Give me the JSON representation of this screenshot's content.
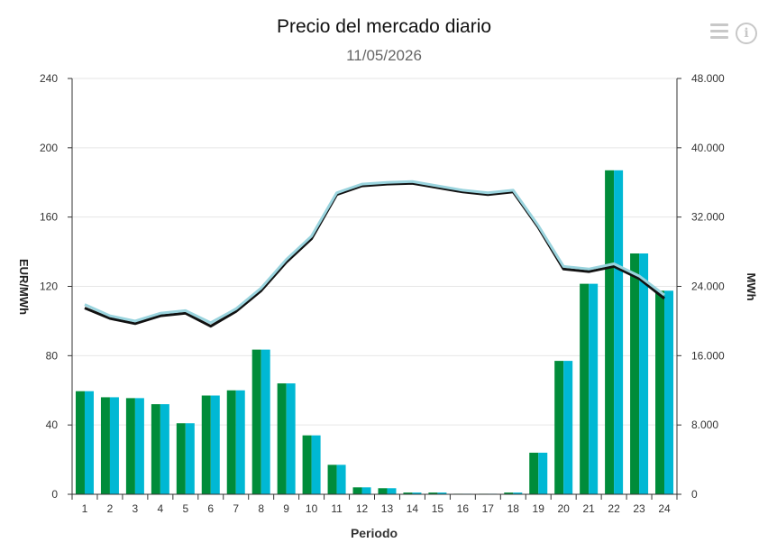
{
  "chart_data": {
    "type": "bar+line",
    "title": "Precio del mercado diario",
    "subtitle": "11/05/2026",
    "xlabel": "Periodo",
    "ylabel_left": "EUR/MWh",
    "ylabel_right": "MWh",
    "categories": [
      "1",
      "2",
      "3",
      "4",
      "5",
      "6",
      "7",
      "8",
      "9",
      "10",
      "11",
      "12",
      "13",
      "14",
      "15",
      "16",
      "17",
      "18",
      "19",
      "20",
      "21",
      "22",
      "23",
      "24"
    ],
    "ylim_left": [
      0,
      240
    ],
    "yticks_left": [
      "0",
      "40",
      "80",
      "120",
      "160",
      "200",
      "240"
    ],
    "ylim_right": [
      0,
      48000
    ],
    "yticks_right": [
      "0",
      "8.000",
      "16.000",
      "24.000",
      "32.000",
      "40.000",
      "48.000"
    ],
    "grid": true,
    "bar_series": [
      {
        "color": "#008c3a",
        "axis": "left",
        "values": [
          59.5,
          56,
          55.5,
          52,
          41,
          57,
          60,
          83.5,
          64,
          34,
          17,
          4,
          3.5,
          1,
          1,
          0.3,
          0.3,
          1,
          24,
          77,
          121.5,
          187,
          139,
          117.5
        ]
      },
      {
        "color": "#00b8d4",
        "axis": "left",
        "values": [
          59.5,
          56,
          55.5,
          52,
          41,
          57,
          60,
          83.5,
          64,
          34,
          17,
          4,
          3.5,
          1,
          1,
          0.3,
          0.3,
          1,
          24,
          77,
          121.5,
          187,
          139,
          117.5
        ]
      }
    ],
    "line_series": [
      {
        "color": "#111111",
        "axis": "right",
        "values": [
          21500,
          20300,
          19700,
          20600,
          20900,
          19400,
          21100,
          23500,
          26800,
          29500,
          34600,
          35600,
          35800,
          35900,
          35400,
          34900,
          34600,
          34900,
          30800,
          26000,
          25700,
          26300,
          24900,
          22600
        ]
      },
      {
        "color": "#9ad4de",
        "axis": "right",
        "values": [
          21900,
          20600,
          20000,
          20900,
          21200,
          19800,
          21400,
          23800,
          27100,
          29800,
          34800,
          35800,
          36000,
          36100,
          35600,
          35100,
          34800,
          35100,
          31000,
          26300,
          26000,
          26600,
          25200,
          23000
        ]
      }
    ]
  }
}
